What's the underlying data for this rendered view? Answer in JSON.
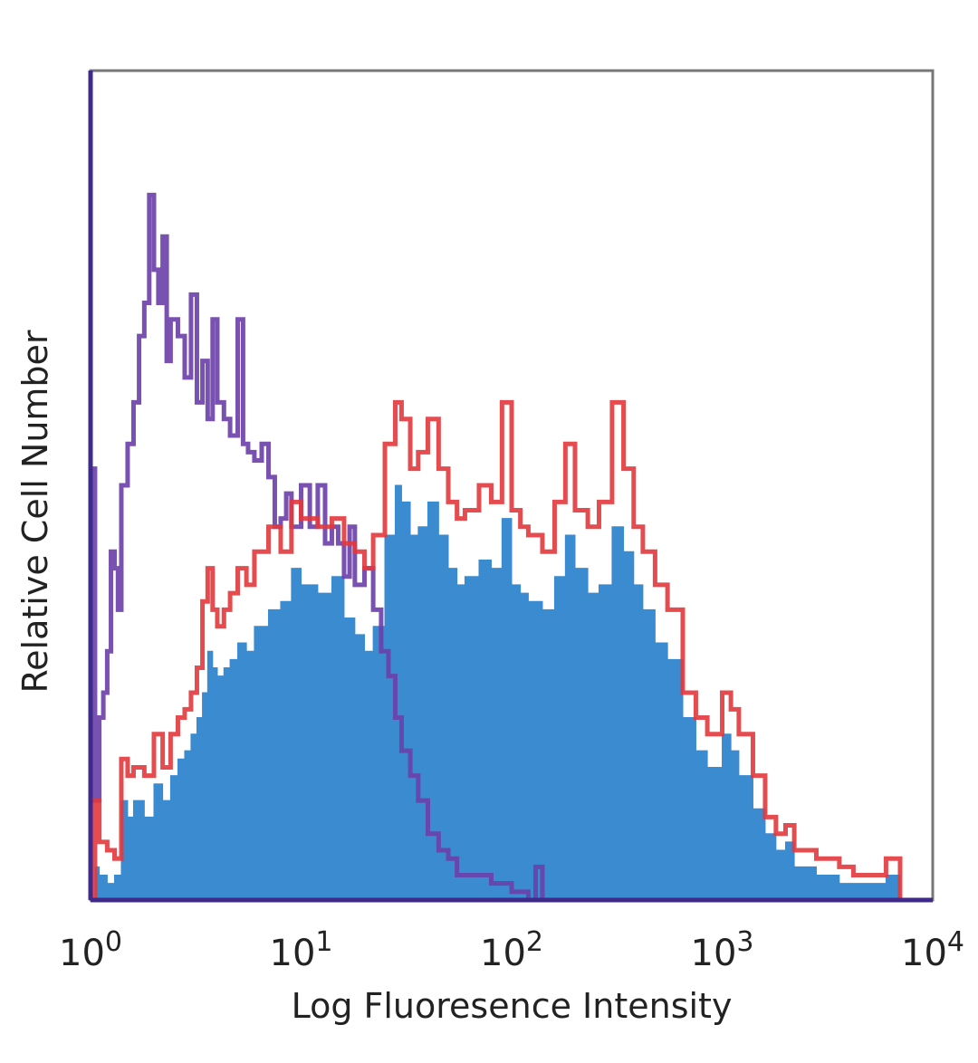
{
  "chart_data": {
    "type": "area",
    "title": "",
    "xlabel": "Log Fluoresence Intensity",
    "ylabel": "Relative Cell Number",
    "x_scale": "log",
    "xlim": [
      1,
      10000
    ],
    "ylim": [
      0,
      100
    ],
    "grid": false,
    "legend": "none",
    "x_ticks": [
      {
        "base": "10",
        "exp": "0"
      },
      {
        "base": "10",
        "exp": "1"
      },
      {
        "base": "10",
        "exp": "2"
      },
      {
        "base": "10",
        "exp": "3"
      },
      {
        "base": "10",
        "exp": "4"
      }
    ],
    "series": [
      {
        "style": "outline",
        "color": "#6a3fa8",
        "points": [
          [
            1.0,
            52
          ],
          [
            1.05,
            12
          ],
          [
            1.1,
            22
          ],
          [
            1.15,
            25
          ],
          [
            1.2,
            30
          ],
          [
            1.25,
            42
          ],
          [
            1.3,
            40
          ],
          [
            1.35,
            35
          ],
          [
            1.4,
            50
          ],
          [
            1.5,
            55
          ],
          [
            1.6,
            60
          ],
          [
            1.7,
            68
          ],
          [
            1.8,
            72
          ],
          [
            1.9,
            85
          ],
          [
            2.0,
            76
          ],
          [
            2.1,
            72
          ],
          [
            2.2,
            80
          ],
          [
            2.3,
            65
          ],
          [
            2.4,
            70
          ],
          [
            2.6,
            68
          ],
          [
            2.8,
            63
          ],
          [
            3.0,
            73
          ],
          [
            3.2,
            60
          ],
          [
            3.4,
            65
          ],
          [
            3.6,
            58
          ],
          [
            3.8,
            70
          ],
          [
            4.0,
            60
          ],
          [
            4.3,
            58
          ],
          [
            4.6,
            56
          ],
          [
            5.0,
            70
          ],
          [
            5.3,
            55
          ],
          [
            5.6,
            54
          ],
          [
            6.0,
            53
          ],
          [
            6.5,
            55
          ],
          [
            7.0,
            51
          ],
          [
            7.5,
            45
          ],
          [
            8.0,
            46
          ],
          [
            8.5,
            49
          ],
          [
            9.0,
            45
          ],
          [
            10,
            50
          ],
          [
            11,
            45
          ],
          [
            12,
            50
          ],
          [
            13,
            43
          ],
          [
            14,
            45
          ],
          [
            15,
            43
          ],
          [
            16,
            39
          ],
          [
            17,
            45
          ],
          [
            18,
            38
          ],
          [
            20,
            40
          ],
          [
            22,
            35
          ],
          [
            24,
            30
          ],
          [
            26,
            27
          ],
          [
            28,
            22
          ],
          [
            30,
            18
          ],
          [
            33,
            15
          ],
          [
            36,
            12
          ],
          [
            40,
            8
          ],
          [
            45,
            6
          ],
          [
            50,
            5
          ],
          [
            55,
            3
          ],
          [
            60,
            3
          ],
          [
            70,
            3
          ],
          [
            80,
            2
          ],
          [
            90,
            2
          ],
          [
            100,
            1
          ],
          [
            120,
            0
          ],
          [
            130,
            4
          ],
          [
            140,
            0
          ],
          [
            200,
            0
          ]
        ]
      },
      {
        "style": "outline",
        "color": "#e2393c",
        "points": [
          [
            1.0,
            0
          ],
          [
            1.05,
            12
          ],
          [
            1.1,
            7
          ],
          [
            1.2,
            6
          ],
          [
            1.3,
            5
          ],
          [
            1.4,
            17
          ],
          [
            1.5,
            15
          ],
          [
            1.6,
            16
          ],
          [
            1.8,
            15
          ],
          [
            2.0,
            20
          ],
          [
            2.2,
            16
          ],
          [
            2.4,
            20
          ],
          [
            2.6,
            22
          ],
          [
            2.8,
            23
          ],
          [
            3.0,
            25
          ],
          [
            3.2,
            28
          ],
          [
            3.4,
            36
          ],
          [
            3.6,
            40
          ],
          [
            3.8,
            35
          ],
          [
            4.0,
            33
          ],
          [
            4.3,
            35
          ],
          [
            4.6,
            37
          ],
          [
            5.0,
            40
          ],
          [
            5.5,
            38
          ],
          [
            6.0,
            42
          ],
          [
            7.0,
            45
          ],
          [
            8.0,
            42
          ],
          [
            9.0,
            48
          ],
          [
            10,
            46
          ],
          [
            12,
            45
          ],
          [
            14,
            46
          ],
          [
            16,
            43
          ],
          [
            18,
            42
          ],
          [
            20,
            40
          ],
          [
            22,
            44
          ],
          [
            25,
            55
          ],
          [
            28,
            60
          ],
          [
            30,
            58
          ],
          [
            33,
            52
          ],
          [
            36,
            54
          ],
          [
            40,
            58
          ],
          [
            45,
            52
          ],
          [
            50,
            48
          ],
          [
            55,
            46
          ],
          [
            60,
            47
          ],
          [
            70,
            50
          ],
          [
            80,
            48
          ],
          [
            90,
            60
          ],
          [
            100,
            47
          ],
          [
            110,
            45
          ],
          [
            120,
            44
          ],
          [
            140,
            42
          ],
          [
            160,
            48
          ],
          [
            180,
            55
          ],
          [
            200,
            47
          ],
          [
            230,
            45
          ],
          [
            260,
            48
          ],
          [
            300,
            60
          ],
          [
            340,
            52
          ],
          [
            380,
            45
          ],
          [
            420,
            42
          ],
          [
            480,
            38
          ],
          [
            550,
            35
          ],
          [
            650,
            25
          ],
          [
            750,
            22
          ],
          [
            850,
            20
          ],
          [
            1000,
            25
          ],
          [
            1100,
            23
          ],
          [
            1200,
            20
          ],
          [
            1400,
            15
          ],
          [
            1600,
            10
          ],
          [
            1800,
            8
          ],
          [
            2000,
            9
          ],
          [
            2200,
            6
          ],
          [
            2500,
            6
          ],
          [
            2800,
            5
          ],
          [
            3200,
            5
          ],
          [
            3600,
            4
          ],
          [
            4200,
            3
          ],
          [
            5000,
            3
          ],
          [
            6000,
            5
          ],
          [
            6500,
            5
          ],
          [
            7000,
            0
          ]
        ]
      },
      {
        "style": "filled",
        "color": "#3b8bd0",
        "points": [
          [
            1.0,
            0
          ],
          [
            1.05,
            4
          ],
          [
            1.1,
            3
          ],
          [
            1.2,
            2
          ],
          [
            1.3,
            3
          ],
          [
            1.4,
            12
          ],
          [
            1.5,
            10
          ],
          [
            1.6,
            12
          ],
          [
            1.8,
            10
          ],
          [
            2.0,
            14
          ],
          [
            2.2,
            12
          ],
          [
            2.4,
            15
          ],
          [
            2.6,
            17
          ],
          [
            2.8,
            18
          ],
          [
            3.0,
            20
          ],
          [
            3.2,
            22
          ],
          [
            3.4,
            25
          ],
          [
            3.6,
            30
          ],
          [
            3.8,
            28
          ],
          [
            4.0,
            27
          ],
          [
            4.3,
            28
          ],
          [
            4.6,
            29
          ],
          [
            5.0,
            31
          ],
          [
            5.5,
            30
          ],
          [
            6.0,
            33
          ],
          [
            7.0,
            35
          ],
          [
            8.0,
            36
          ],
          [
            9.0,
            40
          ],
          [
            10,
            38
          ],
          [
            12,
            37
          ],
          [
            14,
            39
          ],
          [
            16,
            34
          ],
          [
            18,
            32
          ],
          [
            20,
            30
          ],
          [
            22,
            33
          ],
          [
            25,
            44
          ],
          [
            28,
            50
          ],
          [
            30,
            48
          ],
          [
            33,
            44
          ],
          [
            36,
            45
          ],
          [
            40,
            48
          ],
          [
            45,
            44
          ],
          [
            50,
            40
          ],
          [
            55,
            38
          ],
          [
            60,
            39
          ],
          [
            70,
            41
          ],
          [
            80,
            40
          ],
          [
            90,
            46
          ],
          [
            100,
            38
          ],
          [
            110,
            37
          ],
          [
            120,
            36
          ],
          [
            140,
            35
          ],
          [
            160,
            39
          ],
          [
            180,
            44
          ],
          [
            200,
            40
          ],
          [
            230,
            37
          ],
          [
            260,
            38
          ],
          [
            300,
            45
          ],
          [
            340,
            42
          ],
          [
            380,
            38
          ],
          [
            420,
            35
          ],
          [
            480,
            31
          ],
          [
            550,
            29
          ],
          [
            650,
            22
          ],
          [
            750,
            18
          ],
          [
            850,
            16
          ],
          [
            1000,
            20
          ],
          [
            1100,
            18
          ],
          [
            1200,
            15
          ],
          [
            1400,
            11
          ],
          [
            1600,
            8
          ],
          [
            1800,
            6
          ],
          [
            2000,
            7
          ],
          [
            2200,
            4
          ],
          [
            2500,
            4
          ],
          [
            2800,
            3
          ],
          [
            3200,
            3
          ],
          [
            3600,
            2
          ],
          [
            4200,
            2
          ],
          [
            5000,
            2
          ],
          [
            6000,
            3
          ],
          [
            6500,
            3
          ],
          [
            7000,
            0
          ]
        ]
      }
    ]
  }
}
